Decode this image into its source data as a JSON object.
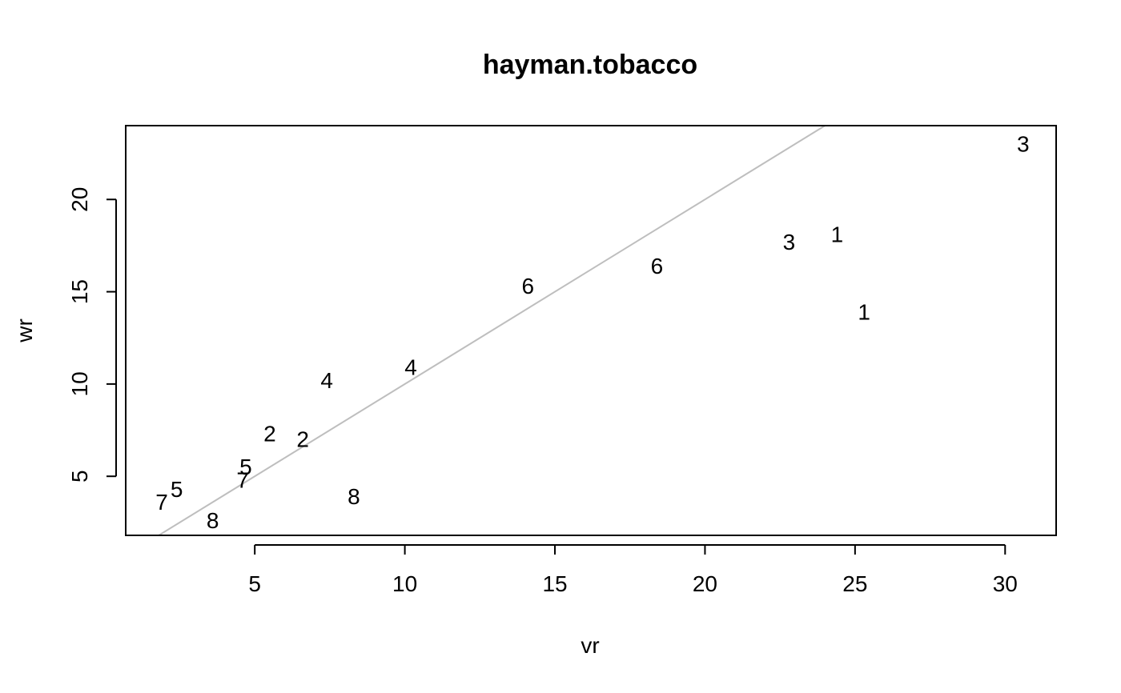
{
  "chart_data": {
    "type": "scatter",
    "title": "hayman.tobacco",
    "xlabel": "vr",
    "ylabel": "wr",
    "xlim": [
      0.7,
      31.7
    ],
    "ylim": [
      1.8,
      24.0
    ],
    "x_ticks": [
      5,
      10,
      15,
      20,
      25,
      30
    ],
    "y_ticks": [
      5,
      10,
      15,
      20
    ],
    "grid": false,
    "reference_line": {
      "slope": 1,
      "intercept": 0,
      "color": "#bebebe"
    },
    "points": [
      {
        "label": "1",
        "x": 24.4,
        "y": 18.1
      },
      {
        "label": "1",
        "x": 25.3,
        "y": 13.9
      },
      {
        "label": "2",
        "x": 5.5,
        "y": 7.3
      },
      {
        "label": "2",
        "x": 6.6,
        "y": 7.0
      },
      {
        "label": "3",
        "x": 30.6,
        "y": 23.0
      },
      {
        "label": "3",
        "x": 22.8,
        "y": 17.7
      },
      {
        "label": "4",
        "x": 7.4,
        "y": 10.2
      },
      {
        "label": "4",
        "x": 10.2,
        "y": 10.9
      },
      {
        "label": "5",
        "x": 4.7,
        "y": 5.5
      },
      {
        "label": "5",
        "x": 2.4,
        "y": 4.3
      },
      {
        "label": "6",
        "x": 14.1,
        "y": 15.3
      },
      {
        "label": "6",
        "x": 18.4,
        "y": 16.4
      },
      {
        "label": "7",
        "x": 4.6,
        "y": 4.8
      },
      {
        "label": "7",
        "x": 1.9,
        "y": 3.6
      },
      {
        "label": "8",
        "x": 3.6,
        "y": 2.6
      },
      {
        "label": "8",
        "x": 8.3,
        "y": 3.9
      }
    ]
  }
}
